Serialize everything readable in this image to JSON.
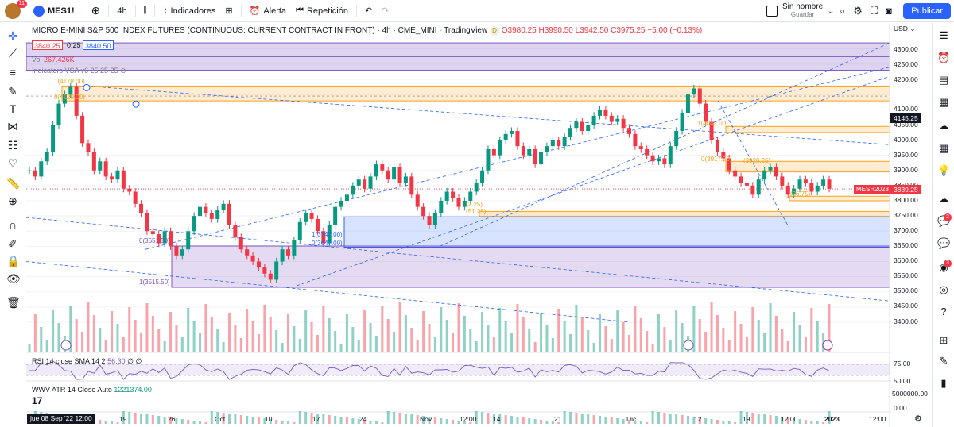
{
  "header": {
    "avatar_badge": "11",
    "symbol": "MES1!",
    "interval": "4h",
    "indicators_label": "Indicadores",
    "alert_label": "Alerta",
    "replay_label": "Repetición",
    "save_title": "Sin nombre",
    "save_sub": "Guardar",
    "publish_label": "Publicar"
  },
  "legend": {
    "title": "MICRO E-MINI S&P 500 INDEX FUTURES (CONTINUOUS: CURRENT CONTRACT IN FRONT) · 4h · CME_MINI · TradingView",
    "d_badge": "D",
    "ohlc": "O3980.25 H3990.50 L3942.50 C3975.25 −5.00 (−0.13%)",
    "sell_price": "3840.25",
    "spread": "0.25",
    "buy_price": "3840.50",
    "vol_label": "Vol",
    "vol_value": "267.426K",
    "indicator_line": "Indicators VSA v6 25 25 25"
  },
  "axis": {
    "currency": "USD",
    "price_ticks": [
      "4300.00",
      "4250.00",
      "4200.00",
      "4100.00",
      "4050.00",
      "4000.00",
      "3950.00",
      "3900.00",
      "3850.00",
      "3800.00",
      "3750.00",
      "3700.00",
      "3650.00",
      "3600.00",
      "3550.00",
      "3500.00",
      "3450.00",
      "3400.00"
    ],
    "crosshair_price": "4145.25",
    "last_price": "3839.25",
    "symbol_tag": "MESH2023",
    "rsi_ticks": [
      "75.00",
      "50.00",
      "25.00"
    ],
    "atr_ticks": [
      "5000000.00",
      "0.00"
    ],
    "time_labels": [
      "19",
      "26",
      "Oct",
      "10",
      "17",
      "24",
      "Nov",
      "12:00",
      "14",
      "21",
      "Dic",
      "12",
      "19",
      "12:00",
      "2023",
      "12:00"
    ],
    "time_cursor": "jue 08 Sep '22  12:00"
  },
  "panes": {
    "rsi_label": "RSI 14 close SMA 14 2",
    "rsi_value": "56.30",
    "rsi_extra": "∅ ∅",
    "atr_label": "WWV ATR 14 Close Auto",
    "atr_value": "1221374.00"
  },
  "drawings": {
    "fib_top_1": "1(4178.00)",
    "fib_top_0": "0(4129.00)",
    "fib_mid_1": "1(3747.00)",
    "fib_mid_0": "0(3647.00)",
    "fib_low_0": "0(3651.50)",
    "fib_low_1": "1(3515.50)",
    "fib_a": "1(4042.00)",
    "fib_b": "0(3917.50)",
    "fib_c": "(3920.25)",
    "fib_d": "(2.25)",
    "fib_e": "(51.25)",
    "fib_f": "(26.75)"
  },
  "chart_data": {
    "type": "candlestick",
    "title": "MICRO E-MINI S&P 500 INDEX FUTURES (CONTINUOUS: CURRENT CONTRACT IN FRONT) · 4h · CME_MINI",
    "ylim": [
      3380,
      4320
    ],
    "close_path": [
      3900,
      3880,
      3930,
      3960,
      4050,
      4120,
      4150,
      4178,
      4080,
      3990,
      3960,
      3900,
      3930,
      3880,
      3870,
      3900,
      3840,
      3830,
      3790,
      3760,
      3700,
      3690,
      3660,
      3700,
      3650,
      3620,
      3640,
      3700,
      3750,
      3780,
      3760,
      3740,
      3770,
      3790,
      3720,
      3680,
      3640,
      3620,
      3600,
      3580,
      3560,
      3540,
      3600,
      3640,
      3620,
      3670,
      3730,
      3760,
      3740,
      3700,
      3660,
      3720,
      3780,
      3800,
      3820,
      3850,
      3870,
      3840,
      3880,
      3920,
      3900,
      3870,
      3910,
      3860,
      3880,
      3820,
      3780,
      3750,
      3720,
      3760,
      3800,
      3830,
      3810,
      3780,
      3800,
      3830,
      3860,
      3900,
      3970,
      3950,
      4000,
      4020,
      4030,
      3980,
      3950,
      3970,
      3920,
      3960,
      3980,
      4000,
      3980,
      4010,
      4040,
      4060,
      4030,
      4050,
      4080,
      4100,
      4080,
      4060,
      4070,
      4040,
      4020,
      3980,
      3970,
      3950,
      3930,
      3940,
      3920,
      3980,
      4030,
      4090,
      4150,
      4170,
      4120,
      4060,
      4000,
      3960,
      3940,
      3900,
      3880,
      3860,
      3850,
      3820,
      3870,
      3900,
      3910,
      3880,
      3850,
      3820,
      3840,
      3870,
      3860,
      3830,
      3850,
      3870,
      3840
    ]
  }
}
